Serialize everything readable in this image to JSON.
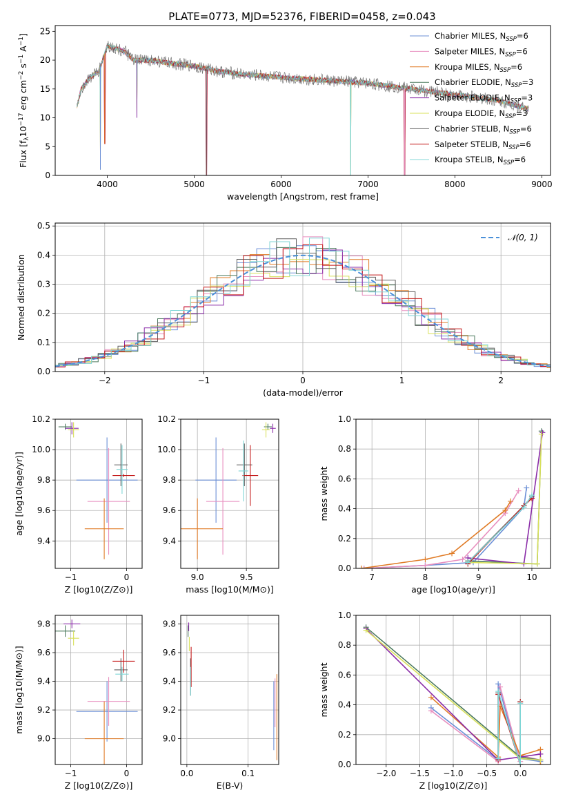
{
  "figure_title": "PLATE=0773, MJD=52376, FIBERID=0458, z=0.043",
  "colors": {
    "Chabrier MILES": "#6b8fd6",
    "Salpeter MILES": "#e88fbf",
    "Kroupa MILES": "#e07b26",
    "Chabrier ELODIE": "#4c7a5e",
    "Salpeter ELODIE": "#8a2ca8",
    "Kroupa ELODIE": "#d8e05a",
    "Chabrier STELIB": "#606060",
    "Salpeter STELIB": "#c41818",
    "Kroupa STELIB": "#7fd6d6",
    "normal_curve": "#4a90d9"
  },
  "chart_data": [
    {
      "id": "spectrum",
      "type": "line",
      "title": "PLATE=0773, MJD=52376, FIBERID=0458, z=0.043",
      "xlabel": "wavelength [Angstrom, rest frame]",
      "ylabel_parts": [
        "Flux [f",
        "λ",
        "10",
        "−17",
        " erg cm",
        "−2",
        " s",
        "−1",
        " A",
        "−1",
        "]"
      ],
      "xlim": [
        3400,
        9100
      ],
      "ylim": [
        0,
        26
      ],
      "xticks": [
        4000,
        5000,
        6000,
        7000,
        8000,
        9000
      ],
      "yticks": [
        0,
        5,
        10,
        15,
        20,
        25
      ],
      "legend_position": "top-right",
      "legend": [
        {
          "library": "Chabrier MILES",
          "nssp": "6"
        },
        {
          "library": "Salpeter MILES",
          "nssp": "6"
        },
        {
          "library": "Kroupa MILES",
          "nssp": "6"
        },
        {
          "library": "Chabrier ELODIE",
          "nssp": "3"
        },
        {
          "library": "Salpeter ELODIE",
          "nssp": "3"
        },
        {
          "library": "Kroupa ELODIE",
          "nssp": "3"
        },
        {
          "library": "Chabrier STELIB",
          "nssp": "6"
        },
        {
          "library": "Salpeter STELIB",
          "nssp": "6"
        },
        {
          "library": "Kroupa STELIB",
          "nssp": "6"
        }
      ],
      "nssp_label": "N",
      "nssp_sub": "SSP",
      "continuum": {
        "x": [
          3650,
          3700,
          3800,
          3900,
          4000,
          4100,
          4200,
          4300,
          4500,
          4700,
          5000,
          5300,
          5600,
          6000,
          6500,
          7000,
          7500,
          8000,
          8500,
          8850
        ],
        "y": [
          12,
          15,
          17,
          18,
          22.5,
          22,
          21.5,
          20,
          20,
          19.5,
          19,
          18,
          17.5,
          17,
          16.5,
          16,
          15,
          14,
          13,
          11.5
        ]
      },
      "drops": [
        {
          "x": 3920,
          "y": 1
        },
        {
          "x": 3970,
          "y": 5.5
        },
        {
          "x": 4340,
          "y": 10
        },
        {
          "x": 5140,
          "y": 0
        },
        {
          "x": 6800,
          "y": 0
        },
        {
          "x": 7420,
          "y": 0
        }
      ]
    },
    {
      "id": "residuals",
      "type": "histogram",
      "xlabel": "(data-model)/error",
      "ylabel": "Normed distribution",
      "xlim": [
        -2.5,
        2.5
      ],
      "ylim": [
        0,
        0.51
      ],
      "xticks": [
        -2,
        -1,
        0,
        1,
        2
      ],
      "yticks": [
        0.0,
        0.1,
        0.2,
        0.3,
        0.4,
        0.5
      ],
      "grid": true,
      "legend_position": "top-right",
      "legend": "𝒩(0, 1)",
      "bin_width": 0.2,
      "curve": {
        "mean": 0,
        "sigma": 1
      }
    },
    {
      "id": "age_vs_Z",
      "type": "scatter",
      "xlabel": "Z [log10(Z/Z⊙)]",
      "ylabel": "age  [log10(age/yr)]",
      "xlim": [
        -1.28,
        0.28
      ],
      "ylim": [
        9.22,
        10.2
      ],
      "xticks": [
        -1,
        0
      ],
      "yticks": [
        9.4,
        9.6,
        9.8,
        10.0,
        10.2
      ],
      "grid": true,
      "points": [
        {
          "series": "Chabrier MILES",
          "x": -0.35,
          "y": 9.8,
          "xerr": 0.55,
          "yerr": 0.28
        },
        {
          "series": "Salpeter MILES",
          "x": -0.32,
          "y": 9.66,
          "xerr": 0.38,
          "yerr": 0.35
        },
        {
          "series": "Kroupa MILES",
          "x": -0.4,
          "y": 9.48,
          "xerr": 0.35,
          "yerr": 0.2
        },
        {
          "series": "Chabrier ELODIE",
          "x": -1.1,
          "y": 10.15,
          "xerr": 0.12,
          "yerr": 0.02
        },
        {
          "series": "Salpeter ELODIE",
          "x": -0.98,
          "y": 10.14,
          "xerr": 0.12,
          "yerr": 0.04
        },
        {
          "series": "Kroupa ELODIE",
          "x": -0.95,
          "y": 10.13,
          "xerr": 0.1,
          "yerr": 0.05
        },
        {
          "series": "Chabrier STELIB",
          "x": -0.1,
          "y": 9.9,
          "xerr": 0.12,
          "yerr": 0.14
        },
        {
          "series": "Salpeter STELIB",
          "x": -0.05,
          "y": 9.83,
          "xerr": 0.2,
          "yerr": 0.01
        },
        {
          "series": "Kroupa STELIB",
          "x": -0.08,
          "y": 9.87,
          "xerr": 0.1,
          "yerr": 0.16
        }
      ]
    },
    {
      "id": "age_vs_mass",
      "type": "scatter",
      "xlabel": "mass [log10(M/M⊙)]",
      "xlim": [
        8.83,
        9.83
      ],
      "ylim": [
        9.22,
        10.2
      ],
      "xticks": [
        9.0,
        9.5
      ],
      "yticks": [
        9.4,
        9.6,
        9.8,
        10.0,
        10.2
      ],
      "grid": true,
      "points": [
        {
          "series": "Chabrier MILES",
          "x": 9.19,
          "y": 9.8,
          "xerr": 0.21,
          "yerr": 0.28
        },
        {
          "series": "Salpeter MILES",
          "x": 9.26,
          "y": 9.66,
          "xerr": 0.17,
          "yerr": 0.35
        },
        {
          "series": "Kroupa MILES",
          "x": 9.0,
          "y": 9.48,
          "xerr": 0.26,
          "yerr": 0.2
        },
        {
          "series": "Chabrier ELODIE",
          "x": 9.72,
          "y": 10.15,
          "xerr": 0.04,
          "yerr": 0.02
        },
        {
          "series": "Salpeter ELODIE",
          "x": 9.77,
          "y": 10.14,
          "xerr": 0.03,
          "yerr": 0.03
        },
        {
          "series": "Kroupa ELODIE",
          "x": 9.7,
          "y": 10.13,
          "xerr": 0.04,
          "yerr": 0.05
        },
        {
          "series": "Chabrier STELIB",
          "x": 9.48,
          "y": 9.9,
          "xerr": 0.08,
          "yerr": 0.14
        },
        {
          "series": "Salpeter STELIB",
          "x": 9.54,
          "y": 9.83,
          "xerr": 0.08,
          "yerr": 0.2
        },
        {
          "series": "Kroupa STELIB",
          "x": 9.47,
          "y": 9.86,
          "xerr": 0.05,
          "yerr": 0.2
        }
      ]
    },
    {
      "id": "massweight_vs_age",
      "type": "line",
      "xlabel": "age  [log10(age/yr)]",
      "ylabel": "mass weight",
      "xlim": [
        6.7,
        10.35
      ],
      "ylim": [
        0,
        1.0
      ],
      "xticks": [
        7,
        8,
        9,
        10
      ],
      "yticks": [
        0.0,
        0.2,
        0.4,
        0.6,
        0.8,
        1.0
      ],
      "grid": true,
      "series": [
        {
          "library": "Chabrier MILES",
          "x": [
            6.85,
            8.0,
            8.9,
            9.85,
            9.9
          ],
          "y": [
            0.0,
            0.02,
            0.04,
            0.41,
            0.54
          ]
        },
        {
          "library": "Salpeter MILES",
          "x": [
            6.85,
            8.0,
            8.7,
            9.5,
            9.75
          ],
          "y": [
            0.0,
            0.02,
            0.06,
            0.37,
            0.52
          ]
        },
        {
          "library": "Kroupa MILES",
          "x": [
            6.8,
            8.0,
            8.5,
            9.5,
            9.6
          ],
          "y": [
            0.0,
            0.06,
            0.1,
            0.39,
            0.45
          ]
        },
        {
          "library": "Chabrier ELODIE",
          "x": [
            8.8,
            10.1,
            10.18
          ],
          "y": [
            0.05,
            0.03,
            0.92
          ]
        },
        {
          "library": "Salpeter ELODIE",
          "x": [
            8.8,
            9.85,
            10.2
          ],
          "y": [
            0.07,
            0.03,
            0.91
          ]
        },
        {
          "library": "Kroupa ELODIE",
          "x": [
            8.8,
            10.1,
            10.18
          ],
          "y": [
            0.04,
            0.03,
            0.9
          ]
        },
        {
          "library": "Chabrier STELIB",
          "x": [
            8.8,
            9.85,
            10.0
          ],
          "y": [
            0.04,
            0.42,
            0.48
          ]
        },
        {
          "library": "Salpeter STELIB",
          "x": [
            8.8,
            9.85,
            10.0
          ],
          "y": [
            0.03,
            0.42,
            0.47
          ]
        },
        {
          "library": "Kroupa STELIB",
          "x": [
            8.8,
            9.85,
            10.0
          ],
          "y": [
            0.04,
            0.41,
            0.49
          ]
        }
      ]
    },
    {
      "id": "mass_vs_Z",
      "type": "scatter",
      "xlabel": "Z [log10(Z/Z⊙)]",
      "ylabel": "mass [log10(M/M⊙)]",
      "xlim": [
        -1.28,
        0.28
      ],
      "ylim": [
        8.82,
        9.86
      ],
      "xticks": [
        -1,
        0
      ],
      "yticks": [
        9.0,
        9.2,
        9.4,
        9.6,
        9.8
      ],
      "grid": true,
      "points": [
        {
          "series": "Chabrier MILES",
          "x": -0.35,
          "y": 9.19,
          "xerr": 0.55,
          "yerr": 0.21
        },
        {
          "series": "Salpeter MILES",
          "x": -0.32,
          "y": 9.26,
          "xerr": 0.38,
          "yerr": 0.17
        },
        {
          "series": "Kroupa MILES",
          "x": -0.4,
          "y": 9.0,
          "xerr": 0.35,
          "yerr": 0.26
        },
        {
          "series": "Chabrier ELODIE",
          "x": -1.1,
          "y": 9.75,
          "xerr": 0.18,
          "yerr": 0.04
        },
        {
          "series": "Salpeter ELODIE",
          "x": -0.98,
          "y": 9.8,
          "xerr": 0.15,
          "yerr": 0.03
        },
        {
          "series": "Kroupa ELODIE",
          "x": -0.95,
          "y": 9.7,
          "xerr": 0.1,
          "yerr": 0.05
        },
        {
          "series": "Chabrier STELIB",
          "x": -0.1,
          "y": 9.48,
          "xerr": 0.12,
          "yerr": 0.08
        },
        {
          "series": "Salpeter STELIB",
          "x": -0.05,
          "y": 9.54,
          "xerr": 0.2,
          "yerr": 0.08
        },
        {
          "series": "Kroupa STELIB",
          "x": -0.08,
          "y": 9.45,
          "xerr": 0.12,
          "yerr": 0.05
        }
      ]
    },
    {
      "id": "mass_vs_ebv",
      "type": "scatter",
      "xlabel": "E(B-V)",
      "xlim": [
        -0.01,
        0.15
      ],
      "ylim": [
        8.82,
        9.86
      ],
      "xticks": [
        0.0,
        0.1
      ],
      "yticks": [
        9.0,
        9.2,
        9.4,
        9.6,
        9.8
      ],
      "grid": true,
      "points": [
        {
          "series": "Chabrier MILES",
          "x": 0.142,
          "y": 9.16,
          "xerr": 0.0,
          "yerr": 0.24
        },
        {
          "series": "Salpeter MILES",
          "x": 0.144,
          "y": 9.25,
          "xerr": 0.0,
          "yerr": 0.17
        },
        {
          "series": "Kroupa MILES",
          "x": 0.147,
          "y": 9.15,
          "xerr": 0.0,
          "yerr": 0.3
        },
        {
          "series": "Chabrier ELODIE",
          "x": 0.002,
          "y": 9.75,
          "xerr": 0.0,
          "yerr": 0.04
        },
        {
          "series": "Salpeter ELODIE",
          "x": 0.003,
          "y": 9.78,
          "xerr": 0.0,
          "yerr": 0.03
        },
        {
          "series": "Kroupa ELODIE",
          "x": 0.004,
          "y": 9.66,
          "xerr": 0.0,
          "yerr": 0.05
        },
        {
          "series": "Chabrier STELIB",
          "x": 0.006,
          "y": 9.43,
          "xerr": 0.0,
          "yerr": 0.13
        },
        {
          "series": "Salpeter STELIB",
          "x": 0.007,
          "y": 9.5,
          "xerr": 0.0,
          "yerr": 0.14
        },
        {
          "series": "Kroupa STELIB",
          "x": 0.006,
          "y": 9.4,
          "xerr": 0.0,
          "yerr": 0.1
        }
      ]
    },
    {
      "id": "massweight_vs_Z",
      "type": "line",
      "xlabel": "Z [log10(Z/Z⊙)]",
      "ylabel": "mass weight",
      "xlim": [
        -2.45,
        0.45
      ],
      "ylim": [
        0,
        1.0
      ],
      "xticks": [
        -2.0,
        -1.5,
        -1.0,
        -0.5,
        0.0
      ],
      "yticks": [
        0.0,
        0.2,
        0.4,
        0.6,
        0.8,
        1.0
      ],
      "grid": true,
      "series": [
        {
          "library": "Chabrier MILES",
          "x": [
            -1.33,
            -0.33,
            -0.33,
            0.0,
            0.0,
            0.3
          ],
          "y": [
            0.38,
            0.03,
            0.54,
            0.0,
            0.04,
            0.02
          ]
        },
        {
          "library": "Salpeter MILES",
          "x": [
            -1.33,
            -0.33,
            -0.3,
            0.0,
            0.0,
            0.3
          ],
          "y": [
            0.36,
            0.02,
            0.52,
            0.02,
            0.06,
            0.03
          ]
        },
        {
          "library": "Kroupa MILES",
          "x": [
            -1.33,
            -0.33,
            -0.3,
            0.0,
            0.3,
            0.3
          ],
          "y": [
            0.45,
            0.05,
            0.39,
            0.06,
            0.1,
            0.0
          ]
        },
        {
          "library": "Chabrier ELODIE",
          "x": [
            -2.3,
            0.0,
            0.3
          ],
          "y": [
            0.92,
            0.05,
            0.03
          ]
        },
        {
          "library": "Salpeter ELODIE",
          "x": [
            -2.3,
            -0.33,
            0.3
          ],
          "y": [
            0.91,
            0.03,
            0.07
          ]
        },
        {
          "library": "Kroupa ELODIE",
          "x": [
            -2.3,
            0.0,
            0.3
          ],
          "y": [
            0.9,
            0.04,
            0.03
          ]
        },
        {
          "library": "Chabrier STELIB",
          "x": [
            -0.33,
            -0.33,
            0.0,
            0.0
          ],
          "y": [
            0.04,
            0.48,
            0.0,
            0.42
          ]
        },
        {
          "library": "Salpeter STELIB",
          "x": [
            -0.33,
            -0.33,
            0.0,
            0.0
          ],
          "y": [
            0.03,
            0.47,
            0.0,
            0.42
          ]
        },
        {
          "library": "Kroupa STELIB",
          "x": [
            -0.33,
            -0.33,
            0.0,
            0.0
          ],
          "y": [
            0.04,
            0.49,
            0.0,
            0.41
          ]
        }
      ]
    }
  ]
}
